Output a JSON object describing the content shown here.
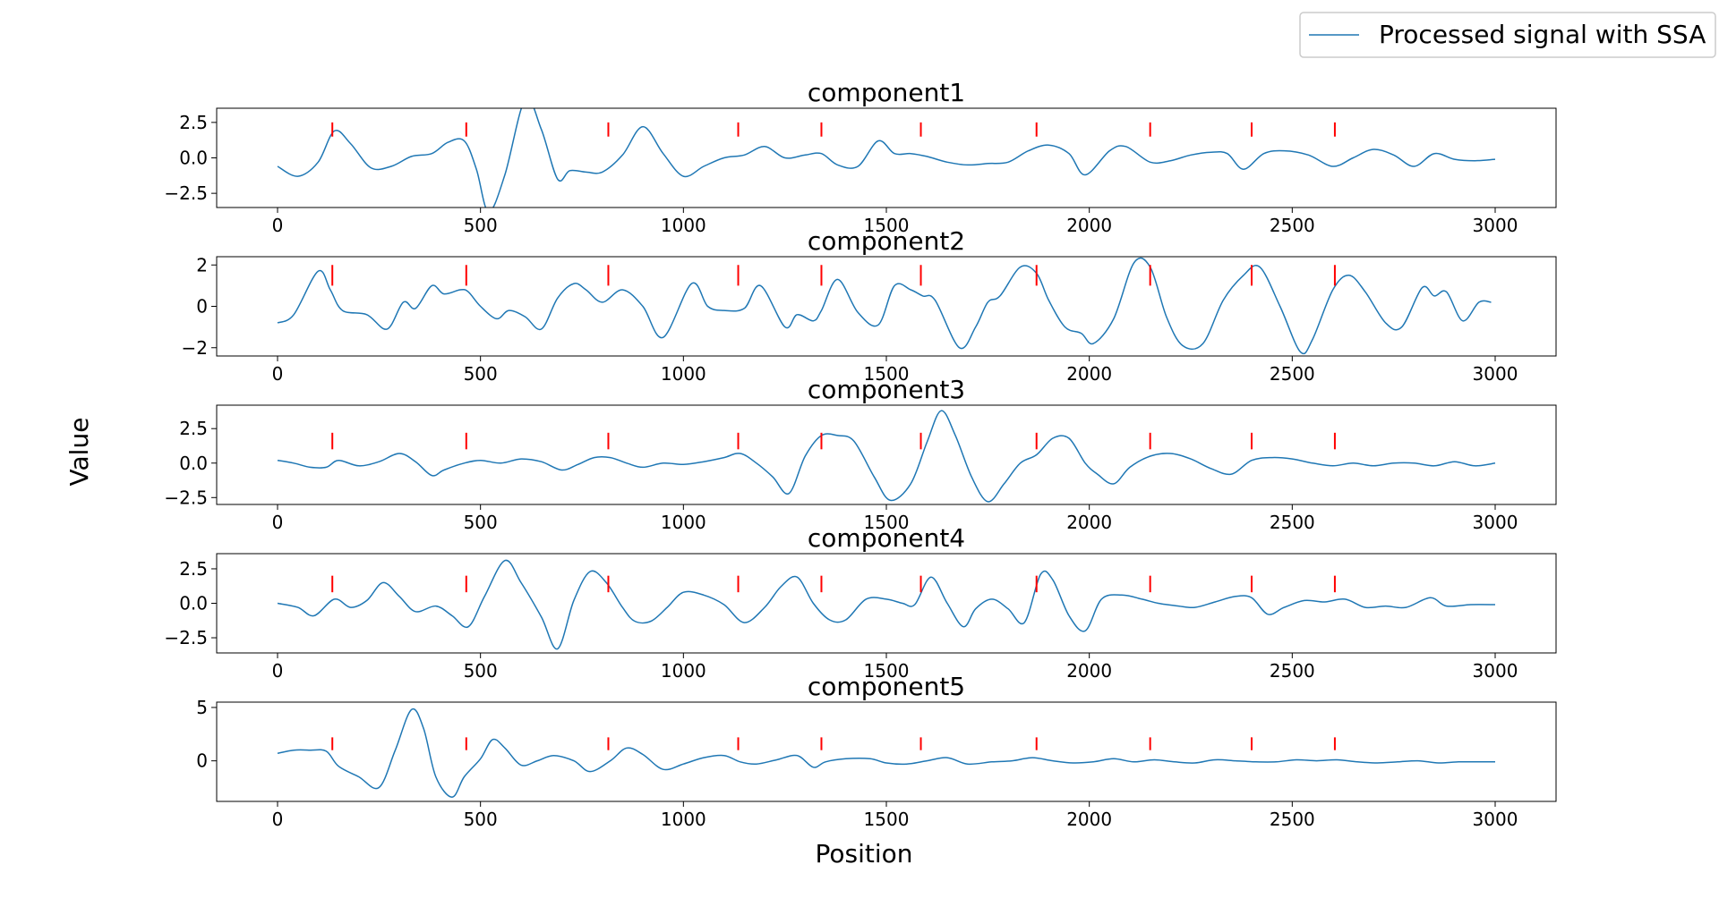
{
  "figure": {
    "xlabel": "Position",
    "ylabel": "Value",
    "legend": {
      "label": "Processed signal with SSA",
      "placement": "top-right"
    }
  },
  "colors": {
    "signal": "#1f77b4",
    "marker": "#ff0000",
    "axes": "#000000"
  },
  "chart_data": [
    {
      "type": "line",
      "title": "component1",
      "xlim": [
        -150,
        3150
      ],
      "ylim": [
        -3.5,
        3.5
      ],
      "xticks": [
        0,
        500,
        1000,
        1500,
        2000,
        2500,
        3000
      ],
      "yticks": [
        2.5,
        0.0,
        -2.5
      ],
      "ytick_labels": [
        "2.5",
        "0.0",
        "−2.5"
      ],
      "marker_positions": [
        135,
        465,
        815,
        1135,
        1340,
        1585,
        1870,
        2150,
        2400,
        2605
      ],
      "marker_y": [
        1.5,
        2.5
      ],
      "series": [
        {
          "name": "Processed signal with SSA",
          "x": [
            0,
            50,
            100,
            140,
            180,
            230,
            280,
            330,
            380,
            420,
            460,
            490,
            520,
            560,
            610,
            650,
            690,
            720,
            760,
            800,
            850,
            900,
            950,
            1000,
            1050,
            1100,
            1150,
            1200,
            1250,
            1300,
            1340,
            1380,
            1430,
            1480,
            1520,
            1560,
            1600,
            1650,
            1700,
            1750,
            1800,
            1850,
            1900,
            1950,
            1990,
            2050,
            2090,
            2150,
            2200,
            2250,
            2300,
            2340,
            2380,
            2430,
            2480,
            2540,
            2600,
            2650,
            2700,
            2750,
            2800,
            2850,
            2900,
            2950,
            3000
          ],
          "y": [
            -0.6,
            -1.3,
            -0.3,
            1.9,
            1.0,
            -0.7,
            -0.6,
            0.1,
            0.3,
            1.1,
            1.2,
            -0.8,
            -3.8,
            -1.2,
            4.1,
            2.0,
            -1.5,
            -0.9,
            -1.0,
            -1.0,
            0.2,
            2.2,
            0.3,
            -1.3,
            -0.6,
            0.0,
            0.2,
            0.8,
            0.0,
            0.2,
            0.3,
            -0.5,
            -0.6,
            1.2,
            0.3,
            0.3,
            0.1,
            -0.3,
            -0.5,
            -0.4,
            -0.3,
            0.5,
            0.9,
            0.3,
            -1.2,
            0.5,
            0.8,
            -0.3,
            -0.2,
            0.2,
            0.4,
            0.3,
            -0.8,
            0.3,
            0.5,
            0.2,
            -0.6,
            0.0,
            0.6,
            0.2,
            -0.6,
            0.3,
            -0.1,
            -0.2,
            -0.1
          ]
        }
      ]
    },
    {
      "type": "line",
      "title": "component2",
      "xlim": [
        -150,
        3150
      ],
      "ylim": [
        -2.4,
        2.4
      ],
      "xticks": [
        0,
        500,
        1000,
        1500,
        2000,
        2500,
        3000
      ],
      "yticks": [
        2,
        0,
        -2
      ],
      "ytick_labels": [
        "2",
        "0",
        "−2"
      ],
      "marker_positions": [
        135,
        465,
        815,
        1135,
        1340,
        1585,
        1870,
        2150,
        2400,
        2605
      ],
      "marker_y": [
        1.0,
        2.0
      ],
      "series": [
        {
          "name": "Processed signal with SSA",
          "x": [
            0,
            40,
            100,
            130,
            160,
            220,
            270,
            310,
            340,
            380,
            410,
            450,
            470,
            500,
            540,
            570,
            610,
            650,
            690,
            730,
            760,
            800,
            850,
            900,
            950,
            1020,
            1060,
            1100,
            1150,
            1190,
            1250,
            1280,
            1320,
            1340,
            1380,
            1430,
            1480,
            1520,
            1560,
            1590,
            1620,
            1680,
            1720,
            1750,
            1780,
            1830,
            1870,
            1900,
            1940,
            1980,
            2010,
            2060,
            2110,
            2150,
            2190,
            2230,
            2280,
            2330,
            2380,
            2420,
            2470,
            2520,
            2550,
            2600,
            2640,
            2680,
            2730,
            2770,
            2820,
            2850,
            2880,
            2920,
            2960,
            2990
          ],
          "y": [
            -0.8,
            -0.4,
            1.7,
            0.8,
            -0.2,
            -0.4,
            -1.1,
            0.2,
            -0.1,
            1.0,
            0.6,
            0.8,
            0.7,
            0.0,
            -0.6,
            -0.2,
            -0.5,
            -1.1,
            0.4,
            1.1,
            0.8,
            0.2,
            0.8,
            0.0,
            -1.5,
            1.1,
            0.0,
            -0.2,
            -0.1,
            1.0,
            -1.0,
            -0.4,
            -0.7,
            -0.2,
            1.3,
            -0.3,
            -0.9,
            1.0,
            0.8,
            0.5,
            0.3,
            -2.0,
            -1.0,
            0.2,
            0.5,
            1.9,
            1.6,
            0.3,
            -1.0,
            -1.3,
            -1.8,
            -0.6,
            2.1,
            1.9,
            -0.5,
            -1.9,
            -1.8,
            0.3,
            1.5,
            1.9,
            0.0,
            -2.2,
            -1.6,
            0.8,
            1.5,
            0.7,
            -0.8,
            -1.0,
            0.9,
            0.5,
            0.7,
            -0.7,
            0.2,
            0.2
          ]
        }
      ]
    },
    {
      "type": "line",
      "title": "component3",
      "xlim": [
        -150,
        3150
      ],
      "ylim": [
        -3.0,
        4.2
      ],
      "xticks": [
        0,
        500,
        1000,
        1500,
        2000,
        2500,
        3000
      ],
      "yticks": [
        2.5,
        0.0,
        -2.5
      ],
      "ytick_labels": [
        "2.5",
        "0.0",
        "−2.5"
      ],
      "marker_positions": [
        135,
        465,
        815,
        1135,
        1340,
        1585,
        1870,
        2150,
        2400,
        2605
      ],
      "marker_y": [
        1.0,
        2.2
      ],
      "series": [
        {
          "name": "Processed signal with SSA",
          "x": [
            0,
            40,
            80,
            120,
            150,
            200,
            250,
            300,
            340,
            380,
            410,
            460,
            500,
            550,
            600,
            650,
            700,
            740,
            780,
            820,
            860,
            900,
            950,
            1000,
            1050,
            1100,
            1140,
            1180,
            1220,
            1260,
            1300,
            1340,
            1380,
            1420,
            1470,
            1510,
            1560,
            1600,
            1635,
            1670,
            1710,
            1750,
            1790,
            1830,
            1870,
            1910,
            1950,
            1990,
            2020,
            2060,
            2100,
            2150,
            2200,
            2250,
            2300,
            2350,
            2400,
            2450,
            2500,
            2550,
            2600,
            2650,
            2700,
            2750,
            2800,
            2850,
            2900,
            2950,
            3000
          ],
          "y": [
            0.2,
            0.0,
            -0.3,
            -0.3,
            0.2,
            -0.2,
            0.1,
            0.7,
            0.1,
            -0.9,
            -0.5,
            0.0,
            0.2,
            0.0,
            0.3,
            0.1,
            -0.5,
            -0.1,
            0.4,
            0.4,
            0.0,
            -0.3,
            0.0,
            -0.1,
            0.1,
            0.4,
            0.7,
            0.0,
            -1.0,
            -2.2,
            0.5,
            2.0,
            2.0,
            1.6,
            -1.0,
            -2.7,
            -1.5,
            1.5,
            3.8,
            2.0,
            -1.0,
            -2.8,
            -1.5,
            0.0,
            0.6,
            1.8,
            1.8,
            0.0,
            -0.8,
            -1.5,
            -0.3,
            0.5,
            0.7,
            0.3,
            -0.4,
            -0.8,
            0.2,
            0.4,
            0.3,
            0.0,
            -0.2,
            0.0,
            -0.2,
            0.0,
            0.0,
            -0.2,
            0.1,
            -0.2,
            0.0
          ]
        }
      ]
    },
    {
      "type": "line",
      "title": "component4",
      "xlim": [
        -150,
        3150
      ],
      "ylim": [
        -3.6,
        3.6
      ],
      "xticks": [
        0,
        500,
        1000,
        1500,
        2000,
        2500,
        3000
      ],
      "yticks": [
        2.5,
        0.0,
        -2.5
      ],
      "ytick_labels": [
        "2.5",
        "0.0",
        "−2.5"
      ],
      "marker_positions": [
        135,
        465,
        815,
        1135,
        1340,
        1585,
        1870,
        2150,
        2400,
        2605
      ],
      "marker_y": [
        0.8,
        2.0
      ],
      "series": [
        {
          "name": "Processed signal with SSA",
          "x": [
            0,
            50,
            90,
            140,
            180,
            220,
            260,
            300,
            340,
            390,
            430,
            470,
            510,
            560,
            600,
            650,
            690,
            730,
            770,
            810,
            850,
            880,
            920,
            960,
            1000,
            1050,
            1100,
            1150,
            1200,
            1240,
            1280,
            1320,
            1360,
            1400,
            1450,
            1500,
            1540,
            1570,
            1610,
            1650,
            1690,
            1720,
            1760,
            1800,
            1840,
            1880,
            1910,
            1950,
            1990,
            2030,
            2080,
            2130,
            2170,
            2220,
            2260,
            2310,
            2360,
            2400,
            2440,
            2480,
            2530,
            2580,
            2630,
            2680,
            2730,
            2780,
            2840,
            2880,
            2940,
            3000
          ],
          "y": [
            0.0,
            -0.3,
            -0.9,
            0.3,
            -0.3,
            0.2,
            1.5,
            0.5,
            -0.6,
            -0.2,
            -0.9,
            -1.7,
            0.5,
            3.1,
            1.5,
            -1.0,
            -3.3,
            0.2,
            2.3,
            1.5,
            -0.3,
            -1.3,
            -1.3,
            -0.3,
            0.8,
            0.6,
            -0.1,
            -1.4,
            -0.3,
            1.2,
            1.9,
            0.0,
            -1.2,
            -1.2,
            0.3,
            0.3,
            0.0,
            -0.1,
            1.9,
            0.0,
            -1.7,
            -0.4,
            0.3,
            -0.4,
            -1.4,
            2.1,
            1.7,
            -0.9,
            -2.0,
            0.3,
            0.6,
            0.3,
            0.0,
            -0.2,
            -0.3,
            0.1,
            0.5,
            0.4,
            -0.8,
            -0.3,
            0.2,
            0.1,
            0.3,
            -0.3,
            -0.2,
            -0.3,
            0.4,
            -0.2,
            -0.1,
            -0.1
          ]
        }
      ]
    },
    {
      "type": "line",
      "title": "component5",
      "xlim": [
        -150,
        3150
      ],
      "ylim": [
        -3.8,
        5.5
      ],
      "xticks": [
        0,
        500,
        1000,
        1500,
        2000,
        2500,
        3000
      ],
      "yticks": [
        5,
        0
      ],
      "ytick_labels": [
        "5",
        "0"
      ],
      "marker_positions": [
        135,
        465,
        815,
        1135,
        1340,
        1585,
        1870,
        2150,
        2400,
        2605
      ],
      "marker_y": [
        1.0,
        2.2
      ],
      "series": [
        {
          "name": "Processed signal with SSA",
          "x": [
            0,
            40,
            80,
            120,
            150,
            200,
            250,
            290,
            330,
            360,
            390,
            430,
            460,
            500,
            530,
            560,
            600,
            640,
            680,
            730,
            770,
            820,
            860,
            900,
            950,
            1000,
            1050,
            1100,
            1140,
            1180,
            1230,
            1280,
            1320,
            1350,
            1400,
            1460,
            1500,
            1550,
            1600,
            1650,
            1700,
            1760,
            1810,
            1860,
            1910,
            1960,
            2010,
            2060,
            2110,
            2160,
            2210,
            2260,
            2310,
            2360,
            2410,
            2460,
            2510,
            2560,
            2610,
            2660,
            2710,
            2760,
            2810,
            2860,
            2910,
            2960,
            3000
          ],
          "y": [
            0.7,
            1.0,
            1.0,
            0.9,
            -0.5,
            -1.5,
            -2.5,
            1.0,
            4.8,
            3.0,
            -1.5,
            -3.4,
            -1.5,
            0.2,
            2.0,
            1.2,
            -0.4,
            0.0,
            0.5,
            0.0,
            -1.0,
            0.0,
            1.2,
            0.6,
            -0.8,
            -0.3,
            0.3,
            0.5,
            -0.1,
            -0.3,
            0.1,
            0.5,
            -0.6,
            -0.1,
            0.2,
            0.2,
            -0.2,
            -0.3,
            0.0,
            0.3,
            -0.3,
            -0.1,
            0.0,
            0.3,
            0.0,
            -0.2,
            -0.1,
            0.2,
            -0.1,
            0.1,
            -0.1,
            -0.2,
            0.1,
            0.0,
            -0.1,
            -0.1,
            0.1,
            0.0,
            0.1,
            -0.1,
            -0.2,
            -0.1,
            0.0,
            -0.2,
            -0.1,
            -0.1,
            -0.1
          ]
        }
      ]
    }
  ]
}
